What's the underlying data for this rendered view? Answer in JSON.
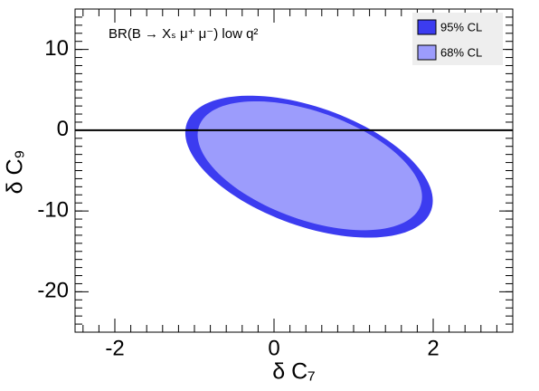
{
  "chart_data": {
    "type": "ellipse",
    "annotation": "BR(B → Xₛ μ⁺ μ⁻) low q²",
    "xlabel": "δ C₇",
    "ylabel": "δ C₉",
    "xlim": [
      -2.5,
      3
    ],
    "ylim": [
      -25,
      15
    ],
    "xticks": [
      -2,
      0,
      2
    ],
    "yticks": [
      -20,
      -10,
      0,
      10
    ],
    "hline": 0,
    "legend": "top-right",
    "series": [
      {
        "name": "95% CL",
        "color": "#3c3cf0",
        "center": [
          0.44,
          -4.51
        ],
        "axis1": [
          1.555,
          -4.22
        ],
        "axis2": [
          0,
          7.71
        ]
      },
      {
        "name": "68% CL",
        "color": "#9c9cfc",
        "center": [
          0.45,
          -4.4
        ],
        "axis1": [
          1.41,
          -3.83
        ],
        "axis2": [
          0,
          7.0
        ]
      }
    ]
  }
}
